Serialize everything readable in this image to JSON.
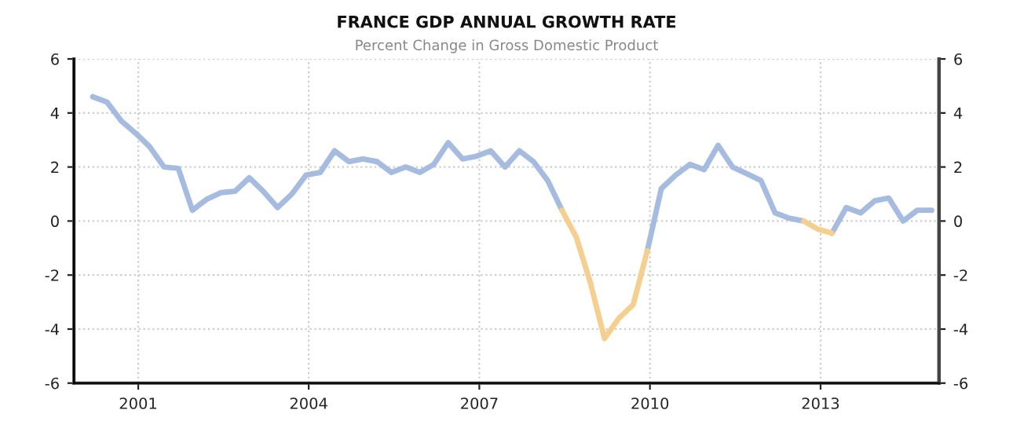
{
  "chart_data": {
    "type": "line",
    "title": "FRANCE GDP ANNUAL GROWTH RATE",
    "subtitle": "Percent Change in Gross Domestic Product",
    "x": [
      "2000-03",
      "2000-06",
      "2000-09",
      "2000-12",
      "2001-03",
      "2001-06",
      "2001-09",
      "2001-12",
      "2002-03",
      "2002-06",
      "2002-09",
      "2002-12",
      "2003-03",
      "2003-06",
      "2003-09",
      "2003-12",
      "2004-03",
      "2004-06",
      "2004-09",
      "2004-12",
      "2005-03",
      "2005-06",
      "2005-09",
      "2005-12",
      "2006-03",
      "2006-06",
      "2006-09",
      "2006-12",
      "2007-03",
      "2007-06",
      "2007-09",
      "2007-12",
      "2008-03",
      "2008-06",
      "2008-09",
      "2008-12",
      "2009-03",
      "2009-06",
      "2009-09",
      "2009-12",
      "2010-03",
      "2010-06",
      "2010-09",
      "2010-12",
      "2011-03",
      "2011-06",
      "2011-09",
      "2011-12",
      "2012-03",
      "2012-06",
      "2012-09",
      "2012-12",
      "2013-03",
      "2013-06",
      "2013-09",
      "2013-12",
      "2014-03",
      "2014-06",
      "2014-09",
      "2014-12"
    ],
    "series": [
      {
        "color": "#a5bbdf",
        "values": [
          4.6,
          4.4,
          3.7,
          3.25,
          2.75,
          2.0,
          1.95,
          0.4,
          0.8,
          1.05,
          1.1,
          1.6,
          1.1,
          0.5,
          1.0,
          1.7,
          1.8,
          2.6,
          2.2,
          2.3,
          2.2,
          1.8,
          2.0,
          1.8,
          2.1,
          2.9,
          2.3,
          2.4,
          2.6,
          2.0,
          2.6,
          2.2,
          1.5,
          0.4,
          null,
          null,
          null,
          null,
          null,
          -1.1,
          1.2,
          1.7,
          2.1,
          1.9,
          2.8,
          2.0,
          1.75,
          1.5,
          0.3,
          0.1,
          0.0,
          null,
          -0.45,
          0.5,
          0.3,
          0.75,
          0.85,
          0.0,
          0.4,
          0.4
        ]
      },
      {
        "color": "#f5cf8f",
        "values": [
          null,
          null,
          null,
          null,
          null,
          null,
          null,
          null,
          null,
          null,
          null,
          null,
          null,
          null,
          null,
          null,
          null,
          null,
          null,
          null,
          null,
          null,
          null,
          null,
          null,
          null,
          null,
          null,
          null,
          null,
          null,
          null,
          null,
          0.4,
          -0.6,
          -2.3,
          -4.35,
          -3.6,
          -3.1,
          -1.1,
          null,
          null,
          null,
          null,
          null,
          null,
          null,
          null,
          null,
          null,
          null,
          null,
          null,
          null,
          null,
          null,
          null,
          null,
          null,
          null
        ]
      },
      {
        "color": "#f5cf8f",
        "values": [
          null,
          null,
          null,
          null,
          null,
          null,
          null,
          null,
          null,
          null,
          null,
          null,
          null,
          null,
          null,
          null,
          null,
          null,
          null,
          null,
          null,
          null,
          null,
          null,
          null,
          null,
          null,
          null,
          null,
          null,
          null,
          null,
          null,
          null,
          null,
          null,
          null,
          null,
          null,
          null,
          null,
          null,
          null,
          null,
          null,
          null,
          null,
          null,
          null,
          null,
          0.0,
          -0.3,
          -0.45,
          null,
          null,
          null,
          null,
          null,
          null,
          null
        ]
      }
    ],
    "xlim": [
      "1999-11-15",
      "2015-02-01"
    ],
    "xticks": [
      {
        "value": "2001-01-01",
        "label": "2001"
      },
      {
        "value": "2004-01-01",
        "label": "2004"
      },
      {
        "value": "2007-01-01",
        "label": "2007"
      },
      {
        "value": "2010-01-01",
        "label": "2010"
      },
      {
        "value": "2013-01-01",
        "label": "2013"
      }
    ],
    "ylim": [
      -6,
      6
    ],
    "yticks": [
      -6,
      -4,
      -2,
      0,
      2,
      4,
      6
    ],
    "y2lim": [
      -6,
      6
    ],
    "y2ticks": [
      -6,
      -4,
      -2,
      0,
      2,
      4,
      6
    ],
    "grid": true,
    "marker": "none",
    "line_style": "solid"
  }
}
